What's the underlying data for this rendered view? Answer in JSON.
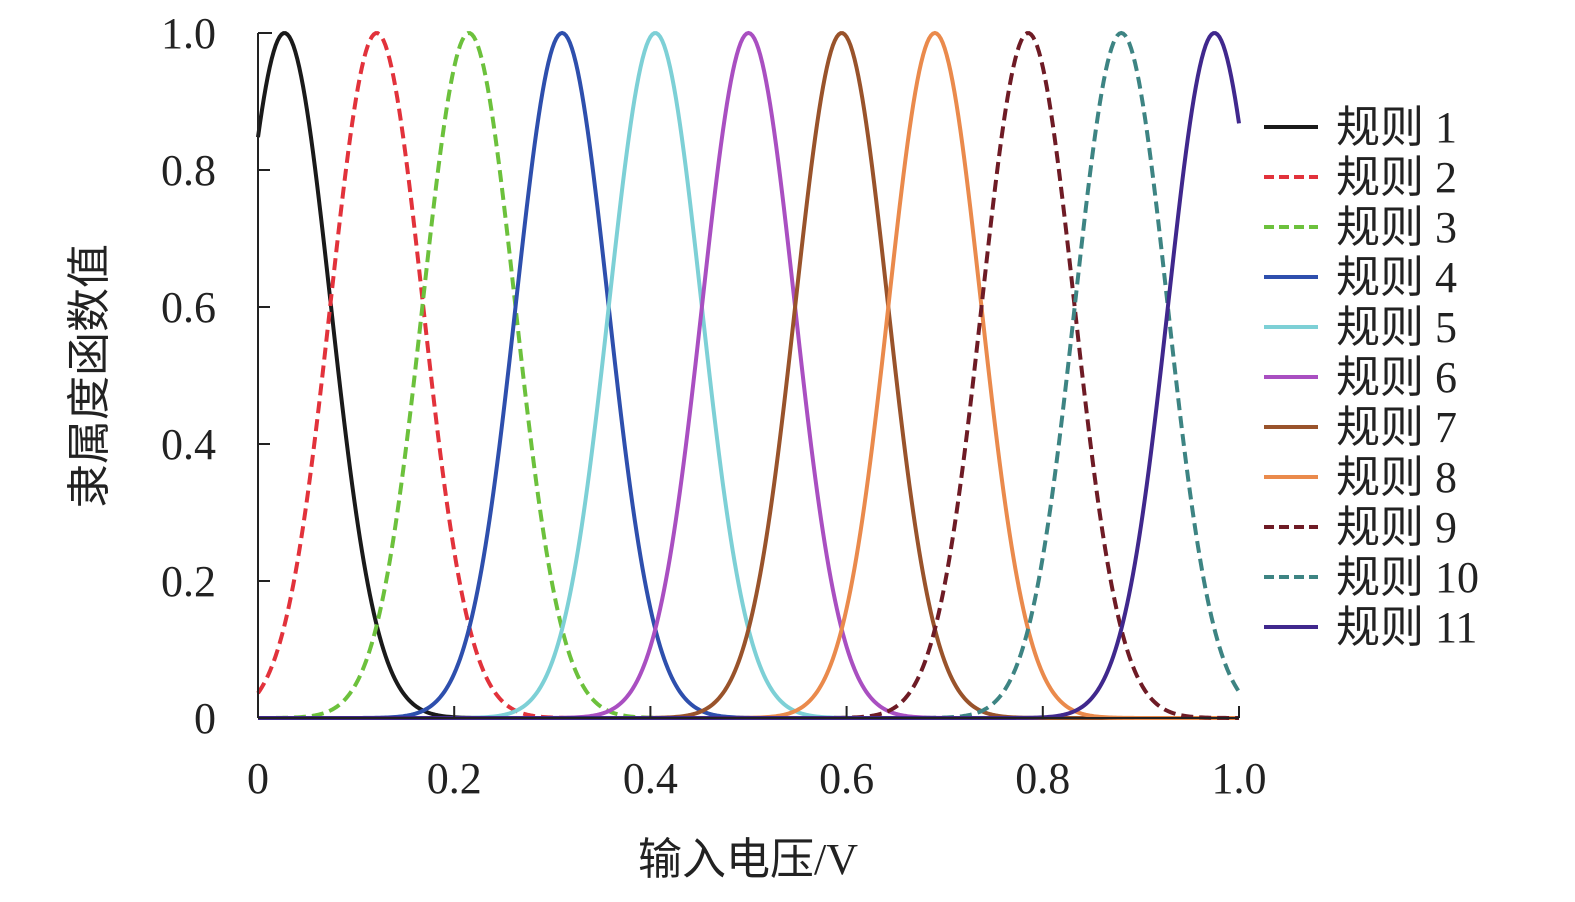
{
  "chart_data": {
    "type": "line",
    "xlabel": "输入电压/V",
    "ylabel": "隶属度函数值",
    "xlim": [
      0,
      1.0
    ],
    "ylim": [
      0,
      1.0
    ],
    "x_ticks": [
      "0",
      "0.2",
      "0.4",
      "0.6",
      "0.8",
      "1.0"
    ],
    "y_ticks": [
      "0",
      "0.2",
      "0.4",
      "0.6",
      "0.8",
      "1.0"
    ],
    "grid": false,
    "legend_position": "right",
    "series": [
      {
        "name": "规则 1",
        "color": "#1a1a1a",
        "dash": false,
        "center": 0.027,
        "sigma": 0.047
      },
      {
        "name": "规则 2",
        "color": "#e2323b",
        "dash": true,
        "center": 0.121,
        "sigma": 0.047
      },
      {
        "name": "规则 3",
        "color": "#6cc13c",
        "dash": true,
        "center": 0.215,
        "sigma": 0.047
      },
      {
        "name": "规则 4",
        "color": "#2e4fad",
        "dash": false,
        "center": 0.31,
        "sigma": 0.047
      },
      {
        "name": "规则 5",
        "color": "#7dd0d6",
        "dash": false,
        "center": 0.405,
        "sigma": 0.047
      },
      {
        "name": "规则 6",
        "color": "#a94fc1",
        "dash": false,
        "center": 0.5,
        "sigma": 0.047
      },
      {
        "name": "规则 7",
        "color": "#99532b",
        "dash": false,
        "center": 0.595,
        "sigma": 0.047
      },
      {
        "name": "规则 8",
        "color": "#ea8a4c",
        "dash": false,
        "center": 0.69,
        "sigma": 0.047
      },
      {
        "name": "规则 9",
        "color": "#6e1b25",
        "dash": true,
        "center": 0.785,
        "sigma": 0.047
      },
      {
        "name": "规则 10",
        "color": "#3d8483",
        "dash": true,
        "center": 0.88,
        "sigma": 0.047
      },
      {
        "name": "规则 11",
        "color": "#40288d",
        "dash": false,
        "center": 0.975,
        "sigma": 0.047
      }
    ]
  }
}
